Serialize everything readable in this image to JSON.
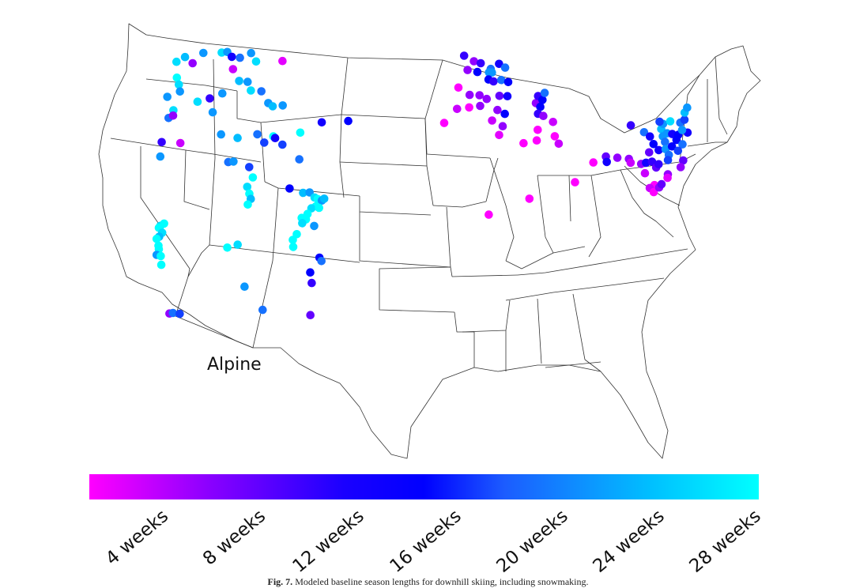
{
  "map_label": "Alpine",
  "colorbar": {
    "ticks": [
      "4 weeks",
      "8 weeks",
      "12 weeks",
      "16 weeks",
      "20 weeks",
      "24 weeks",
      "28 weeks"
    ],
    "colors": {
      "min": "#ff00ff",
      "mid": "#0000ff",
      "max": "#00ffff"
    }
  },
  "caption": {
    "prefix": "Fig. 7.",
    "text": "Modeled baseline season lengths for downhill skiing, including snowmaking."
  },
  "resorts": [
    {
      "lon": -122.5,
      "lat": 48.4,
      "weeks": 26
    },
    {
      "lon": -121.7,
      "lat": 48.6,
      "weeks": 24
    },
    {
      "lon": -120.7,
      "lat": 48.2,
      "weeks": 8
    },
    {
      "lon": -119.8,
      "lat": 48.7,
      "weeks": 22
    },
    {
      "lon": -117.8,
      "lat": 48.6,
      "weeks": 26
    },
    {
      "lon": -117.2,
      "lat": 48.6,
      "weeks": 22
    },
    {
      "lon": -116.6,
      "lat": 48.3,
      "weeks": 14
    },
    {
      "lon": -116.2,
      "lat": 47.6,
      "weeks": 6
    },
    {
      "lon": -115.7,
      "lat": 48.2,
      "weeks": 20
    },
    {
      "lon": -114.6,
      "lat": 48.4,
      "weeks": 22
    },
    {
      "lon": -113.9,
      "lat": 47.9,
      "weeks": 26
    },
    {
      "lon": -111.1,
      "lat": 47.8,
      "weeks": 5
    },
    {
      "lon": -122.0,
      "lat": 47.5,
      "weeks": 28
    },
    {
      "lon": -121.6,
      "lat": 47.1,
      "weeks": 26
    },
    {
      "lon": -121.3,
      "lat": 46.7,
      "weeks": 22
    },
    {
      "lon": -122.5,
      "lat": 46.5,
      "weeks": 22
    },
    {
      "lon": -121.8,
      "lat": 45.3,
      "weeks": 20
    },
    {
      "lon": -121.5,
      "lat": 45.7,
      "weeks": 26
    },
    {
      "lon": -121.4,
      "lat": 45.4,
      "weeks": 8
    },
    {
      "lon": -119.2,
      "lat": 46.0,
      "weeks": 26
    },
    {
      "lon": -118.0,
      "lat": 46.1,
      "weeks": 12
    },
    {
      "lon": -117.4,
      "lat": 45.3,
      "weeks": 22
    },
    {
      "lon": -116.8,
      "lat": 46.3,
      "weeks": 22
    },
    {
      "lon": -115.3,
      "lat": 46.9,
      "weeks": 24
    },
    {
      "lon": -114.4,
      "lat": 46.8,
      "weeks": 22
    },
    {
      "lon": -113.9,
      "lat": 46.3,
      "weeks": 26
    },
    {
      "lon": -112.8,
      "lat": 46.2,
      "weeks": 20
    },
    {
      "lon": -111.9,
      "lat": 45.5,
      "weeks": 22
    },
    {
      "lon": -111.4,
      "lat": 45.3,
      "weeks": 24
    },
    {
      "lon": -110.4,
      "lat": 45.3,
      "weeks": 22
    },
    {
      "lon": -121.9,
      "lat": 44.0,
      "weeks": 12
    },
    {
      "lon": -121.7,
      "lat": 43.2,
      "weeks": 22
    },
    {
      "lon": -120.0,
      "lat": 43.8,
      "weeks": 6
    },
    {
      "lon": -116.1,
      "lat": 44.0,
      "weeks": 22
    },
    {
      "lon": -114.4,
      "lat": 43.7,
      "weeks": 24
    },
    {
      "lon": -112.5,
      "lat": 43.8,
      "weeks": 20
    },
    {
      "lon": -111.7,
      "lat": 43.3,
      "weeks": 18
    },
    {
      "lon": -110.9,
      "lat": 43.6,
      "weeks": 28
    },
    {
      "lon": -110.7,
      "lat": 43.5,
      "weeks": 14
    },
    {
      "lon": -109.9,
      "lat": 43.1,
      "weeks": 18
    },
    {
      "lon": -108.3,
      "lat": 43.7,
      "weeks": 28
    },
    {
      "lon": -106.3,
      "lat": 44.2,
      "weeks": 14
    },
    {
      "lon": -114.9,
      "lat": 42.4,
      "weeks": 20
    },
    {
      "lon": -114.4,
      "lat": 42.4,
      "weeks": 22
    },
    {
      "lon": -112.8,
      "lat": 42.0,
      "weeks": 18
    },
    {
      "lon": -112.3,
      "lat": 41.4,
      "weeks": 28
    },
    {
      "lon": -112.7,
      "lat": 40.9,
      "weeks": 26
    },
    {
      "lon": -112.4,
      "lat": 40.5,
      "weeks": 28
    },
    {
      "lon": -112.2,
      "lat": 40.2,
      "weeks": 24
    },
    {
      "lon": -112.4,
      "lat": 39.9,
      "weeks": 28
    },
    {
      "lon": -108.1,
      "lat": 42.2,
      "weeks": 20
    },
    {
      "lon": -108.7,
      "lat": 40.6,
      "weeks": 16
    },
    {
      "lon": -120.2,
      "lat": 39.3,
      "weeks": 26
    },
    {
      "lon": -119.9,
      "lat": 39.4,
      "weeks": 28
    },
    {
      "lon": -120.3,
      "lat": 39.2,
      "weeks": 28
    },
    {
      "lon": -119.9,
      "lat": 38.9,
      "weeks": 26
    },
    {
      "lon": -120.1,
      "lat": 38.7,
      "weeks": 24
    },
    {
      "lon": -120.0,
      "lat": 38.2,
      "weeks": 28
    },
    {
      "lon": -119.9,
      "lat": 38.0,
      "weeks": 28
    },
    {
      "lon": -120.3,
      "lat": 38.6,
      "weeks": 28
    },
    {
      "lon": -120.0,
      "lat": 37.7,
      "weeks": 22
    },
    {
      "lon": -119.6,
      "lat": 37.6,
      "weeks": 28
    },
    {
      "lon": -119.4,
      "lat": 37.1,
      "weeks": 28
    },
    {
      "lon": -113.7,
      "lat": 37.6,
      "weeks": 28
    },
    {
      "lon": -112.8,
      "lat": 37.7,
      "weeks": 26
    },
    {
      "lon": -107.4,
      "lat": 40.3,
      "weeks": 24
    },
    {
      "lon": -106.8,
      "lat": 40.3,
      "weeks": 22
    },
    {
      "lon": -106.3,
      "lat": 40.0,
      "weeks": 26
    },
    {
      "lon": -106.0,
      "lat": 39.9,
      "weeks": 28
    },
    {
      "lon": -105.6,
      "lat": 39.8,
      "weeks": 22
    },
    {
      "lon": -105.4,
      "lat": 39.9,
      "weeks": 24
    },
    {
      "lon": -106.1,
      "lat": 39.5,
      "weeks": 28
    },
    {
      "lon": -106.5,
      "lat": 39.4,
      "weeks": 26
    },
    {
      "lon": -105.8,
      "lat": 39.4,
      "weeks": 28
    },
    {
      "lon": -106.8,
      "lat": 39.1,
      "weeks": 28
    },
    {
      "lon": -107.3,
      "lat": 38.9,
      "weeks": 28
    },
    {
      "lon": -106.9,
      "lat": 38.8,
      "weeks": 28
    },
    {
      "lon": -107.2,
      "lat": 38.6,
      "weeks": 26
    },
    {
      "lon": -106.1,
      "lat": 38.4,
      "weeks": 22
    },
    {
      "lon": -107.6,
      "lat": 38.0,
      "weeks": 28
    },
    {
      "lon": -107.9,
      "lat": 37.7,
      "weeks": 28
    },
    {
      "lon": -107.8,
      "lat": 37.3,
      "weeks": 28
    },
    {
      "lon": -117.9,
      "lat": 34.3,
      "weeks": 8
    },
    {
      "lon": -117.6,
      "lat": 34.3,
      "weeks": 20
    },
    {
      "lon": -117.0,
      "lat": 34.2,
      "weeks": 18
    },
    {
      "lon": -111.7,
      "lat": 35.3,
      "weeks": 22
    },
    {
      "lon": -109.9,
      "lat": 33.9,
      "weeks": 20
    },
    {
      "lon": -105.4,
      "lat": 36.6,
      "weeks": 16
    },
    {
      "lon": -105.2,
      "lat": 36.4,
      "weeks": 20
    },
    {
      "lon": -106.1,
      "lat": 35.8,
      "weeks": 16
    },
    {
      "lon": -105.9,
      "lat": 35.2,
      "weeks": 12
    },
    {
      "lon": -105.8,
      "lat": 33.4,
      "weeks": 10
    },
    {
      "lon": -103.7,
      "lat": 44.2,
      "weeks": 16
    },
    {
      "lon": -92.1,
      "lat": 47.8,
      "weeks": 12
    },
    {
      "lon": -91.1,
      "lat": 47.5,
      "weeks": 8
    },
    {
      "lon": -90.4,
      "lat": 47.4,
      "weeks": 12
    },
    {
      "lon": -89.4,
      "lat": 47.1,
      "weeks": 20
    },
    {
      "lon": -88.5,
      "lat": 47.4,
      "weeks": 14
    },
    {
      "lon": -87.9,
      "lat": 47.2,
      "weeks": 20
    },
    {
      "lon": -91.8,
      "lat": 47.0,
      "weeks": 8
    },
    {
      "lon": -90.8,
      "lat": 46.9,
      "weeks": 16
    },
    {
      "lon": -89.6,
      "lat": 46.9,
      "weeks": 22
    },
    {
      "lon": -89.3,
      "lat": 46.9,
      "weeks": 22
    },
    {
      "lon": -89.7,
      "lat": 46.5,
      "weeks": 16
    },
    {
      "lon": -89.2,
      "lat": 46.4,
      "weeks": 12
    },
    {
      "lon": -88.4,
      "lat": 46.5,
      "weeks": 20
    },
    {
      "lon": -87.7,
      "lat": 46.4,
      "weeks": 16
    },
    {
      "lon": -92.8,
      "lat": 46.0,
      "weeks": 4
    },
    {
      "lon": -91.7,
      "lat": 45.6,
      "weeks": 8
    },
    {
      "lon": -90.7,
      "lat": 45.6,
      "weeks": 8
    },
    {
      "lon": -90.0,
      "lat": 45.4,
      "weeks": 8
    },
    {
      "lon": -88.7,
      "lat": 45.6,
      "weeks": 10
    },
    {
      "lon": -87.9,
      "lat": 45.6,
      "weeks": 14
    },
    {
      "lon": -90.7,
      "lat": 45.0,
      "weeks": 8
    },
    {
      "lon": -91.8,
      "lat": 44.9,
      "weeks": 4
    },
    {
      "lon": -93.0,
      "lat": 44.8,
      "weeks": 6
    },
    {
      "lon": -89.0,
      "lat": 44.8,
      "weeks": 8
    },
    {
      "lon": -88.3,
      "lat": 44.6,
      "weeks": 16
    },
    {
      "lon": -89.6,
      "lat": 44.2,
      "weeks": 6
    },
    {
      "lon": -88.6,
      "lat": 43.9,
      "weeks": 8
    },
    {
      "lon": -89.0,
      "lat": 43.4,
      "weeks": 5
    },
    {
      "lon": -94.3,
      "lat": 44.0,
      "weeks": 4
    },
    {
      "lon": -85.1,
      "lat": 45.3,
      "weeks": 8
    },
    {
      "lon": -84.8,
      "lat": 45.7,
      "weeks": 12
    },
    {
      "lon": -84.4,
      "lat": 45.5,
      "weeks": 16
    },
    {
      "lon": -84.1,
      "lat": 45.9,
      "weeks": 20
    },
    {
      "lon": -84.7,
      "lat": 45.1,
      "weeks": 16
    },
    {
      "lon": -85.0,
      "lat": 44.7,
      "weeks": 12
    },
    {
      "lon": -84.5,
      "lat": 44.6,
      "weeks": 8
    },
    {
      "lon": -83.6,
      "lat": 44.3,
      "weeks": 6
    },
    {
      "lon": -85.2,
      "lat": 43.8,
      "weeks": 4
    },
    {
      "lon": -83.6,
      "lat": 43.5,
      "weeks": 4
    },
    {
      "lon": -83.3,
      "lat": 43.1,
      "weeks": 6
    },
    {
      "lon": -86.7,
      "lat": 43.0,
      "weeks": 4
    },
    {
      "lon": -85.4,
      "lat": 43.2,
      "weeks": 4
    },
    {
      "lon": -80.2,
      "lat": 42.2,
      "weeks": 4
    },
    {
      "lon": -82.2,
      "lat": 41.0,
      "weeks": 3
    },
    {
      "lon": -86.6,
      "lat": 39.9,
      "weeks": 4
    },
    {
      "lon": -90.4,
      "lat": 38.9,
      "weeks": 3
    },
    {
      "lon": -78.9,
      "lat": 42.6,
      "weeks": 10
    },
    {
      "lon": -78.9,
      "lat": 42.3,
      "weeks": 14
    },
    {
      "lon": -77.8,
      "lat": 42.6,
      "weeks": 8
    },
    {
      "lon": -76.7,
      "lat": 42.6,
      "weeks": 8
    },
    {
      "lon": -76.6,
      "lat": 42.4,
      "weeks": 6
    },
    {
      "lon": -75.6,
      "lat": 42.4,
      "weeks": 8
    },
    {
      "lon": -75.1,
      "lat": 42.5,
      "weeks": 14
    },
    {
      "lon": -74.5,
      "lat": 42.6,
      "weeks": 12
    },
    {
      "lon": -74.2,
      "lat": 42.3,
      "weeks": 10
    },
    {
      "lon": -73.9,
      "lat": 42.5,
      "weeks": 12
    },
    {
      "lon": -75.4,
      "lat": 41.9,
      "weeks": 6
    },
    {
      "lon": -74.7,
      "lat": 41.3,
      "weeks": 4
    },
    {
      "lon": -75.2,
      "lat": 41.1,
      "weeks": 6
    },
    {
      "lon": -74.9,
      "lat": 40.9,
      "weeks": 4
    },
    {
      "lon": -74.3,
      "lat": 41.2,
      "weeks": 8
    },
    {
      "lon": -74.0,
      "lat": 41.4,
      "weeks": 10
    },
    {
      "lon": -75.9,
      "lat": 44.5,
      "weeks": 12
    },
    {
      "lon": -74.7,
      "lat": 44.2,
      "weeks": 20
    },
    {
      "lon": -74.2,
      "lat": 44.0,
      "weeks": 14
    },
    {
      "lon": -74.0,
      "lat": 43.6,
      "weeks": 16
    },
    {
      "lon": -74.6,
      "lat": 43.1,
      "weeks": 10
    },
    {
      "lon": -73.6,
      "lat": 43.3,
      "weeks": 14
    },
    {
      "lon": -72.9,
      "lat": 44.5,
      "weeks": 24
    },
    {
      "lon": -72.9,
      "lat": 44.1,
      "weeks": 22
    },
    {
      "lon": -72.8,
      "lat": 43.8,
      "weeks": 20
    },
    {
      "lon": -72.9,
      "lat": 43.4,
      "weeks": 22
    },
    {
      "lon": -72.7,
      "lat": 43.1,
      "weeks": 20
    },
    {
      "lon": -72.9,
      "lat": 42.8,
      "weeks": 18
    },
    {
      "lon": -72.6,
      "lat": 44.8,
      "weeks": 22
    },
    {
      "lon": -72.4,
      "lat": 44.3,
      "weeks": 22
    },
    {
      "lon": -72.2,
      "lat": 43.6,
      "weeks": 16
    },
    {
      "lon": -71.9,
      "lat": 44.3,
      "weeks": 14
    },
    {
      "lon": -71.6,
      "lat": 44.0,
      "weeks": 16
    },
    {
      "lon": -71.3,
      "lat": 44.3,
      "weeks": 16
    },
    {
      "lon": -71.1,
      "lat": 43.8,
      "weeks": 20
    },
    {
      "lon": -71.7,
      "lat": 43.4,
      "weeks": 18
    },
    {
      "lon": -71.4,
      "lat": 42.9,
      "weeks": 10
    },
    {
      "lon": -71.8,
      "lat": 42.5,
      "weeks": 8
    },
    {
      "lon": -70.8,
      "lat": 45.0,
      "weeks": 20
    },
    {
      "lon": -70.3,
      "lat": 45.2,
      "weeks": 18
    },
    {
      "lon": -70.1,
      "lat": 45.6,
      "weeks": 24
    },
    {
      "lon": -69.7,
      "lat": 45.9,
      "weeks": 22
    },
    {
      "lon": -70.3,
      "lat": 44.5,
      "weeks": 14
    },
    {
      "lon": -70.8,
      "lat": 44.6,
      "weeks": 22
    },
    {
      "lon": -73.2,
      "lat": 42.0,
      "weeks": 8
    },
    {
      "lon": -73.3,
      "lat": 41.8,
      "weeks": 5
    },
    {
      "lon": -72.9,
      "lat": 44.9,
      "weeks": 18
    },
    {
      "lon": -71.8,
      "lat": 45.0,
      "weeks": 26
    }
  ]
}
